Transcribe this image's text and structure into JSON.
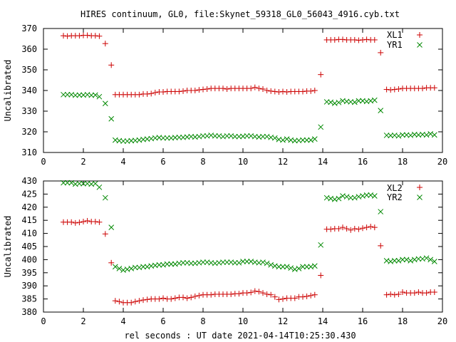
{
  "chart_data": [
    {
      "type": "scatter",
      "title": "HIRES continuum, GL0, file:Skynet_59318_GL0_56043_4916.cyb.txt",
      "xlabel": "",
      "ylabel": "Uncalibrated",
      "xlim": [
        0,
        20
      ],
      "ylim": [
        310,
        370
      ],
      "xticks": [
        "0",
        "2",
        "4",
        "6",
        "8",
        "10",
        "12",
        "14",
        "16",
        "18",
        "20"
      ],
      "yticks": [
        "310",
        "320",
        "330",
        "340",
        "350",
        "360",
        "370"
      ],
      "legend_position": "top-right",
      "grid": false,
      "series": [
        {
          "name": "XL1",
          "marker": "plus",
          "color": "#cc0000",
          "x": [
            1.0,
            1.2,
            1.4,
            1.6,
            1.8,
            2.0,
            2.2,
            2.4,
            2.6,
            2.8,
            3.1,
            3.4,
            3.6,
            3.8,
            4.0,
            4.2,
            4.4,
            4.6,
            4.8,
            5.0,
            5.2,
            5.4,
            5.6,
            5.8,
            6.0,
            6.2,
            6.4,
            6.6,
            6.8,
            7.0,
            7.2,
            7.4,
            7.6,
            7.8,
            8.0,
            8.2,
            8.4,
            8.6,
            8.8,
            9.0,
            9.2,
            9.4,
            9.6,
            9.8,
            10.0,
            10.2,
            10.4,
            10.6,
            10.8,
            11.0,
            11.2,
            11.4,
            11.6,
            11.8,
            12.0,
            12.2,
            12.4,
            12.6,
            12.8,
            13.0,
            13.2,
            13.4,
            13.6,
            13.9,
            14.2,
            14.4,
            14.6,
            14.8,
            15.0,
            15.2,
            15.4,
            15.6,
            15.8,
            16.0,
            16.2,
            16.4,
            16.6,
            16.9,
            17.2,
            17.4,
            17.6,
            17.8,
            18.0,
            18.2,
            18.4,
            18.6,
            18.8,
            19.0,
            19.2,
            19.4,
            19.6
          ],
          "y": [
            366.5,
            366.3,
            366.5,
            366.5,
            366.5,
            366.7,
            366.7,
            366.5,
            366.5,
            366.3,
            362.7,
            352.3,
            338.0,
            338.0,
            338.0,
            338.0,
            338.0,
            338.0,
            338.0,
            338.3,
            338.3,
            338.5,
            339.0,
            339.3,
            339.3,
            339.5,
            339.5,
            339.5,
            339.5,
            339.7,
            340.0,
            340.0,
            340.0,
            340.3,
            340.5,
            340.7,
            341.0,
            341.0,
            341.0,
            341.0,
            340.7,
            341.0,
            341.0,
            341.0,
            341.0,
            341.0,
            341.0,
            341.5,
            341.0,
            340.7,
            340.0,
            339.7,
            339.5,
            339.3,
            339.5,
            339.3,
            339.5,
            339.5,
            339.5,
            339.5,
            339.7,
            339.7,
            340.0,
            347.7,
            364.5,
            364.5,
            364.5,
            364.7,
            364.7,
            364.5,
            364.5,
            364.5,
            364.3,
            364.5,
            364.7,
            364.5,
            364.5,
            358.3,
            340.5,
            340.3,
            340.5,
            340.7,
            341.0,
            341.0,
            341.0,
            341.0,
            341.0,
            341.0,
            341.3,
            341.3,
            341.3
          ]
        },
        {
          "name": "YR1",
          "marker": "cross",
          "color": "#008800",
          "x": [
            1.0,
            1.2,
            1.4,
            1.6,
            1.8,
            2.0,
            2.2,
            2.4,
            2.6,
            2.8,
            3.1,
            3.4,
            3.6,
            3.8,
            4.0,
            4.2,
            4.4,
            4.6,
            4.8,
            5.0,
            5.2,
            5.4,
            5.6,
            5.8,
            6.0,
            6.2,
            6.4,
            6.6,
            6.8,
            7.0,
            7.2,
            7.4,
            7.6,
            7.8,
            8.0,
            8.2,
            8.4,
            8.6,
            8.8,
            9.0,
            9.2,
            9.4,
            9.6,
            9.8,
            10.0,
            10.2,
            10.4,
            10.6,
            10.8,
            11.0,
            11.2,
            11.4,
            11.6,
            11.8,
            12.0,
            12.2,
            12.4,
            12.6,
            12.8,
            13.0,
            13.2,
            13.4,
            13.6,
            13.9,
            14.2,
            14.4,
            14.6,
            14.8,
            15.0,
            15.2,
            15.4,
            15.6,
            15.8,
            16.0,
            16.2,
            16.4,
            16.6,
            16.9,
            17.2,
            17.4,
            17.6,
            17.8,
            18.0,
            18.2,
            18.4,
            18.6,
            18.8,
            19.0,
            19.2,
            19.4,
            19.6
          ],
          "y": [
            338.0,
            338.0,
            338.0,
            337.7,
            337.8,
            337.8,
            338.0,
            337.7,
            337.8,
            337.0,
            333.7,
            326.3,
            316.0,
            315.7,
            315.5,
            315.5,
            315.7,
            315.8,
            316.0,
            316.3,
            316.5,
            316.7,
            317.0,
            317.2,
            317.0,
            317.0,
            317.0,
            317.2,
            317.3,
            317.3,
            317.5,
            317.7,
            317.5,
            317.7,
            318.0,
            318.0,
            318.3,
            318.0,
            318.0,
            317.7,
            318.0,
            318.0,
            317.7,
            317.7,
            317.8,
            318.0,
            318.0,
            317.7,
            317.5,
            317.7,
            317.7,
            317.3,
            317.0,
            316.3,
            316.0,
            316.5,
            316.0,
            315.7,
            315.8,
            316.0,
            316.0,
            316.0,
            316.5,
            322.3,
            334.5,
            334.3,
            333.8,
            334.2,
            335.0,
            334.7,
            334.5,
            334.3,
            335.0,
            335.0,
            334.7,
            335.0,
            335.3,
            330.3,
            318.3,
            318.2,
            318.3,
            318.0,
            318.5,
            318.5,
            318.3,
            318.7,
            318.5,
            318.7,
            318.5,
            319.0,
            318.5
          ]
        }
      ]
    },
    {
      "type": "scatter",
      "title": "",
      "xlabel": "rel seconds : UT date 2021-04-14T10:25:30.430",
      "ylabel": "Uncalibrated",
      "xlim": [
        0,
        20
      ],
      "ylim": [
        380,
        430
      ],
      "xticks": [
        "0",
        "2",
        "4",
        "6",
        "8",
        "10",
        "12",
        "14",
        "16",
        "18",
        "20"
      ],
      "yticks": [
        "380",
        "385",
        "390",
        "395",
        "400",
        "405",
        "410",
        "415",
        "420",
        "425",
        "430"
      ],
      "legend_position": "top-right",
      "grid": false,
      "series": [
        {
          "name": "XL2",
          "marker": "plus",
          "color": "#cc0000",
          "x": [
            1.0,
            1.2,
            1.4,
            1.6,
            1.8,
            2.0,
            2.2,
            2.4,
            2.6,
            2.8,
            3.1,
            3.4,
            3.6,
            3.8,
            4.0,
            4.2,
            4.4,
            4.6,
            4.8,
            5.0,
            5.2,
            5.4,
            5.6,
            5.8,
            6.0,
            6.2,
            6.4,
            6.6,
            6.8,
            7.0,
            7.2,
            7.4,
            7.6,
            7.8,
            8.0,
            8.2,
            8.4,
            8.6,
            8.8,
            9.0,
            9.2,
            9.4,
            9.6,
            9.8,
            10.0,
            10.2,
            10.4,
            10.6,
            10.8,
            11.0,
            11.2,
            11.4,
            11.6,
            11.8,
            12.0,
            12.2,
            12.4,
            12.6,
            12.8,
            13.0,
            13.2,
            13.4,
            13.6,
            13.9,
            14.2,
            14.4,
            14.6,
            14.8,
            15.0,
            15.2,
            15.4,
            15.6,
            15.8,
            16.0,
            16.2,
            16.4,
            16.6,
            16.9,
            17.2,
            17.4,
            17.6,
            17.8,
            18.0,
            18.2,
            18.4,
            18.6,
            18.8,
            19.0,
            19.2,
            19.4,
            19.6
          ],
          "y": [
            414.3,
            414.3,
            414.3,
            414.0,
            414.2,
            414.5,
            414.8,
            414.5,
            414.5,
            414.3,
            409.8,
            398.8,
            384.3,
            384.0,
            383.6,
            383.6,
            383.6,
            384.0,
            384.3,
            384.6,
            384.8,
            385.0,
            385.0,
            385.0,
            385.3,
            385.0,
            385.0,
            385.3,
            385.6,
            385.6,
            385.3,
            385.6,
            386.0,
            386.3,
            386.6,
            386.6,
            386.6,
            386.8,
            386.8,
            386.8,
            386.8,
            386.8,
            387.0,
            387.0,
            387.3,
            387.3,
            387.5,
            388.0,
            387.8,
            387.3,
            386.8,
            386.6,
            385.8,
            384.8,
            385.0,
            385.3,
            385.3,
            385.3,
            385.8,
            385.8,
            386.0,
            386.3,
            386.6,
            394.0,
            411.6,
            411.6,
            411.8,
            411.8,
            412.3,
            411.8,
            411.3,
            411.8,
            411.6,
            412.0,
            412.3,
            412.6,
            412.3,
            405.3,
            386.6,
            386.8,
            386.6,
            386.8,
            387.6,
            387.3,
            387.3,
            387.3,
            387.6,
            387.3,
            387.3,
            387.6,
            387.6
          ]
        },
        {
          "name": "YR2",
          "marker": "cross",
          "color": "#008800",
          "x": [
            1.0,
            1.2,
            1.4,
            1.6,
            1.8,
            2.0,
            2.2,
            2.4,
            2.6,
            2.8,
            3.1,
            3.4,
            3.6,
            3.8,
            4.0,
            4.2,
            4.4,
            4.6,
            4.8,
            5.0,
            5.2,
            5.4,
            5.6,
            5.8,
            6.0,
            6.2,
            6.4,
            6.6,
            6.8,
            7.0,
            7.2,
            7.4,
            7.6,
            7.8,
            8.0,
            8.2,
            8.4,
            8.6,
            8.8,
            9.0,
            9.2,
            9.4,
            9.6,
            9.8,
            10.0,
            10.2,
            10.4,
            10.6,
            10.8,
            11.0,
            11.2,
            11.4,
            11.6,
            11.8,
            12.0,
            12.2,
            12.4,
            12.6,
            12.8,
            13.0,
            13.2,
            13.4,
            13.6,
            13.9,
            14.2,
            14.4,
            14.6,
            14.8,
            15.0,
            15.2,
            15.4,
            15.6,
            15.8,
            16.0,
            16.2,
            16.4,
            16.6,
            16.9,
            17.2,
            17.4,
            17.6,
            17.8,
            18.0,
            18.2,
            18.4,
            18.6,
            18.8,
            19.0,
            19.2,
            19.4,
            19.6
          ],
          "y": [
            429.3,
            429.3,
            429.3,
            428.8,
            429.0,
            429.0,
            429.0,
            428.8,
            429.0,
            427.6,
            423.6,
            412.3,
            397.3,
            396.6,
            396.0,
            396.3,
            396.6,
            397.0,
            397.0,
            397.3,
            397.3,
            397.6,
            397.8,
            398.0,
            398.0,
            398.3,
            398.3,
            398.3,
            398.6,
            398.8,
            398.8,
            398.6,
            398.6,
            398.8,
            399.0,
            399.0,
            398.8,
            398.6,
            398.8,
            399.0,
            399.0,
            399.0,
            398.8,
            398.8,
            399.3,
            399.3,
            399.3,
            399.0,
            398.8,
            399.0,
            398.6,
            398.0,
            397.6,
            397.3,
            397.3,
            397.3,
            396.8,
            396.3,
            396.6,
            397.3,
            397.3,
            397.3,
            397.6,
            405.6,
            423.6,
            423.3,
            423.0,
            423.3,
            424.3,
            424.0,
            423.6,
            423.6,
            424.0,
            424.3,
            424.6,
            424.6,
            424.3,
            418.3,
            399.6,
            399.3,
            399.6,
            399.6,
            400.0,
            400.0,
            399.6,
            400.0,
            400.3,
            400.3,
            400.6,
            400.0,
            399.3
          ]
        }
      ]
    }
  ]
}
